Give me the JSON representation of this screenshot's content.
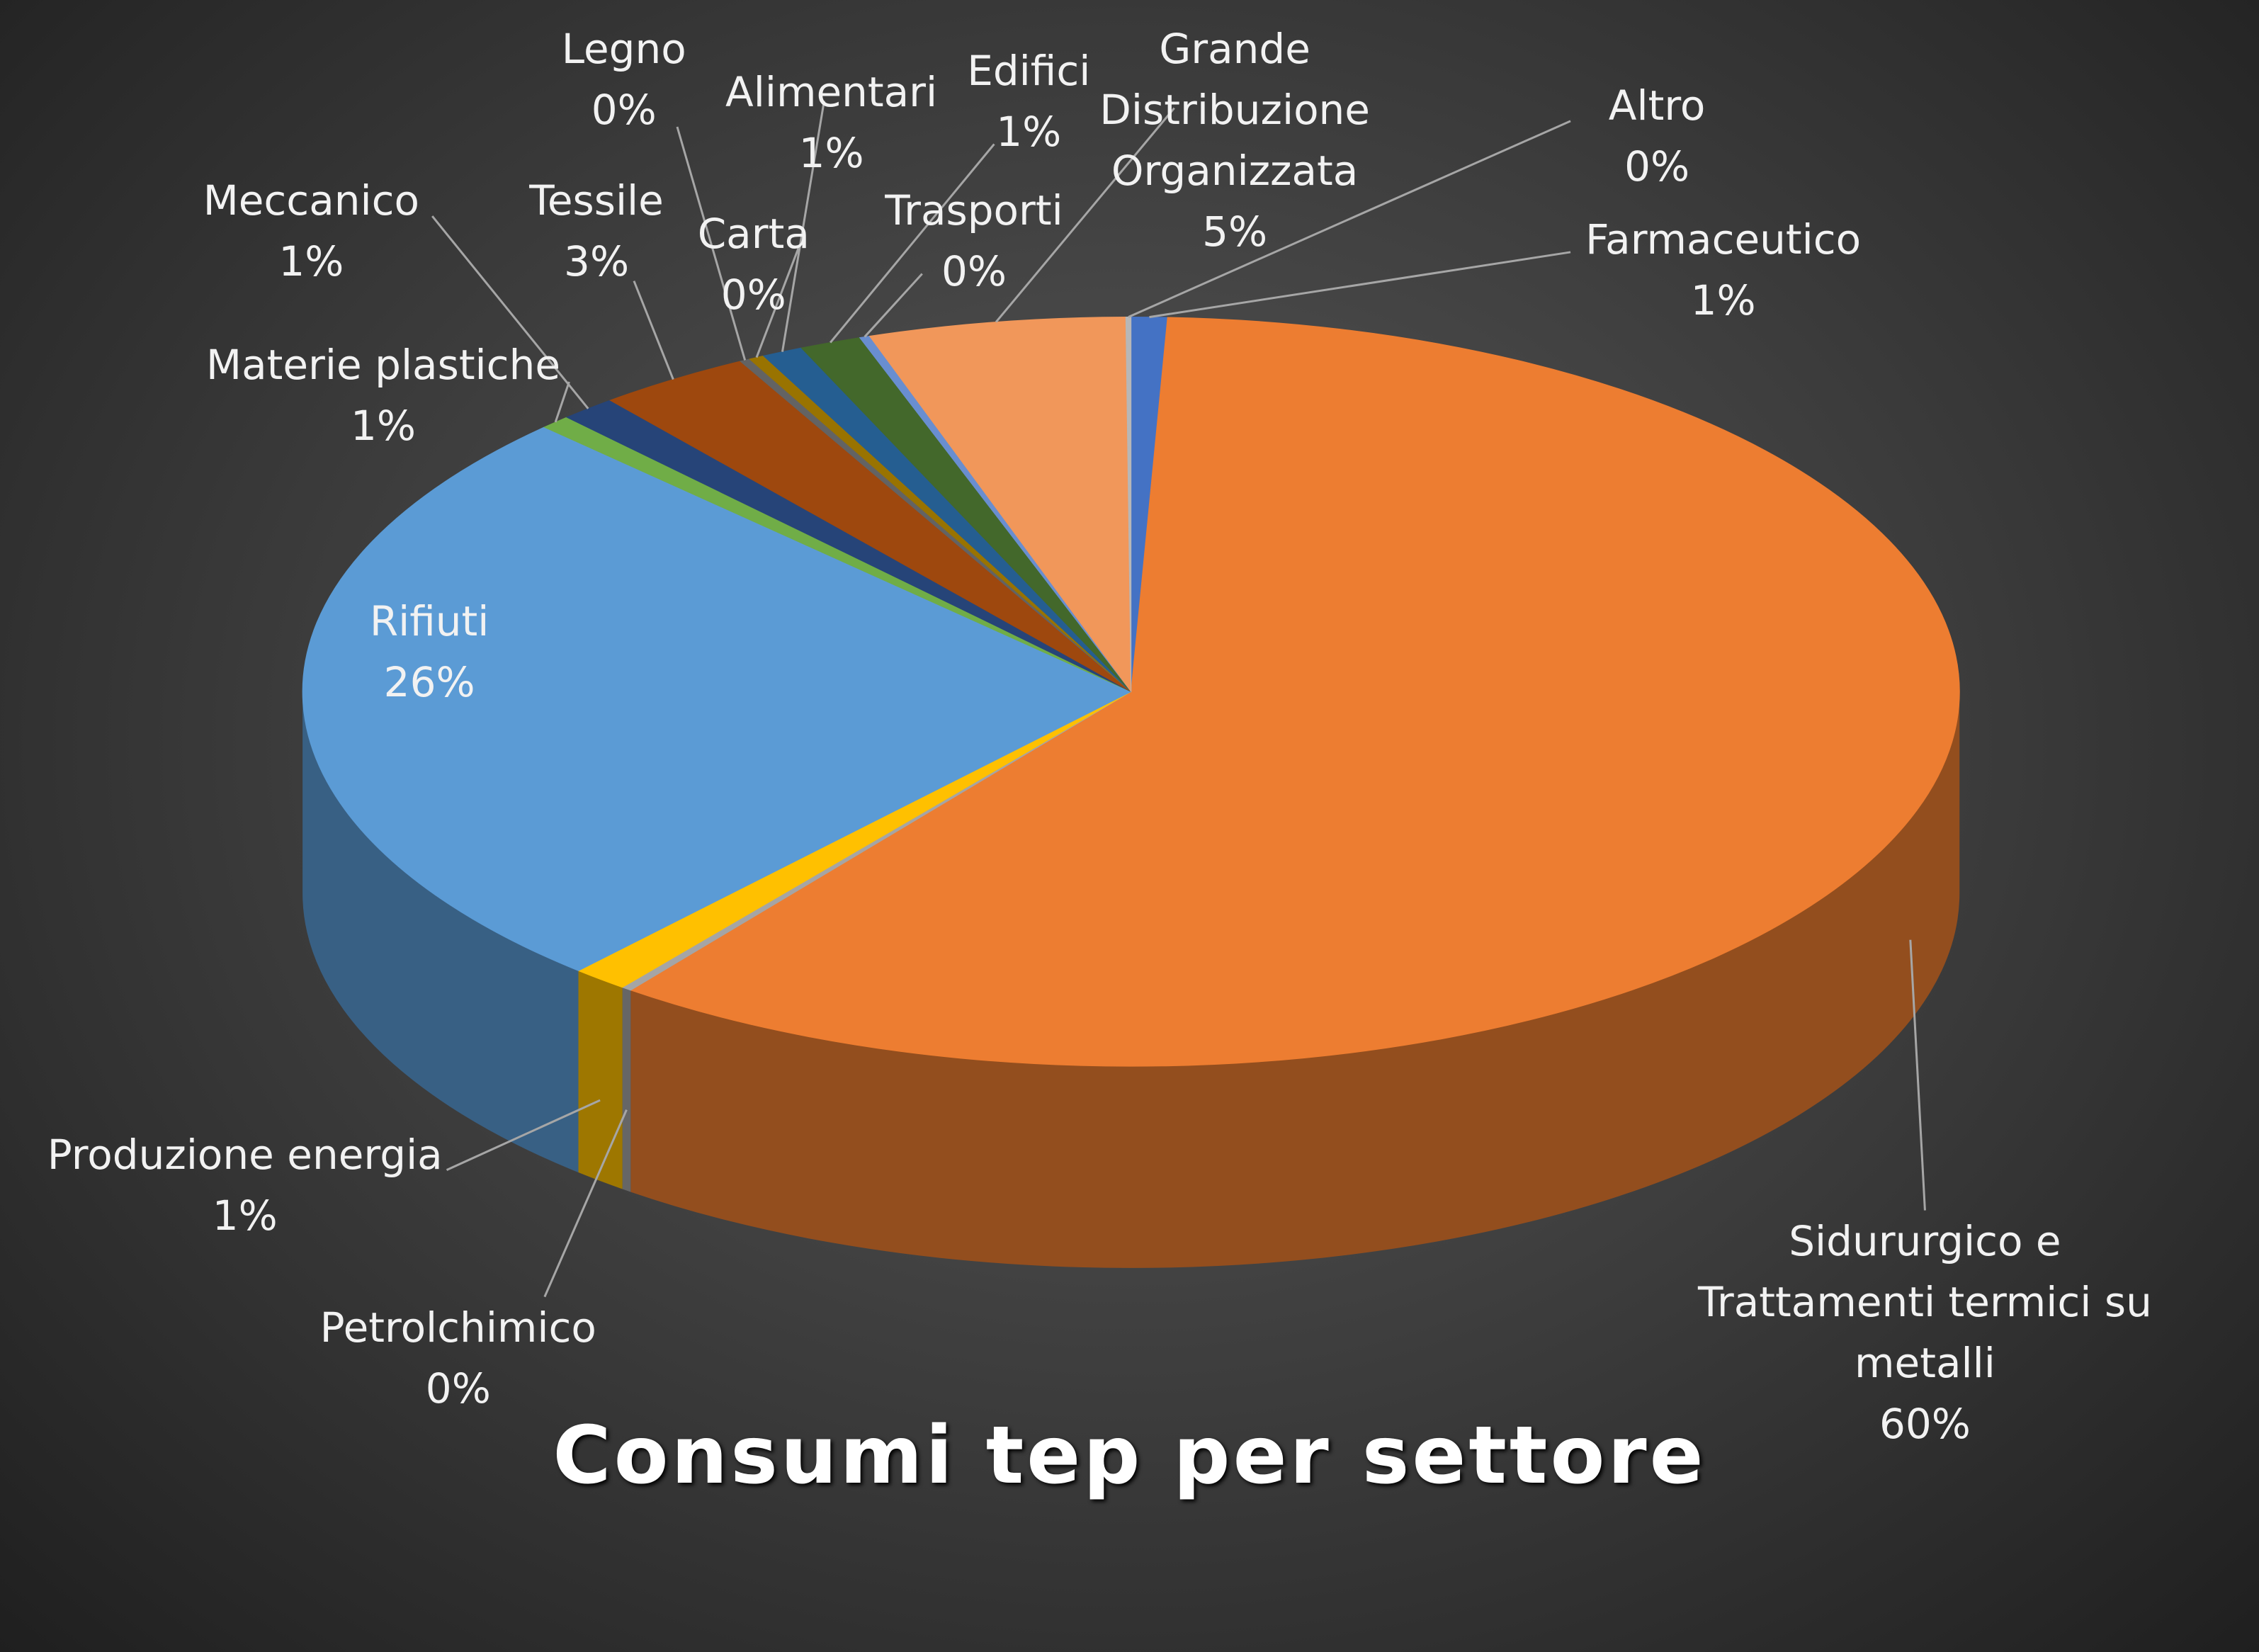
{
  "chart_data": {
    "type": "pie3d",
    "title": "Consumi tep per settore",
    "categories": [
      "Farmaceutico",
      "Sidururgico e Trattamenti termici su metalli",
      "Petrolchimico",
      "Produzione energia",
      "Rifiuti",
      "Materie plastiche",
      "Meccanico",
      "Tessile",
      "Legno",
      "Carta",
      "Alimentari",
      "Edifici",
      "Trasporti",
      "Grande Distribuzione Organizzata",
      "Altro"
    ],
    "values": [
      0.7,
      59.5,
      0.2,
      1.1,
      25.8,
      0.6,
      1.1,
      3,
      0.2,
      0.3,
      0.8,
      1.2,
      0.2,
      5.0,
      0.1
    ],
    "value_labels": [
      "1%",
      "60%",
      "0%",
      "1%",
      "26%",
      "1%",
      "1%",
      "3%",
      "0%",
      "0%",
      "1%",
      "1%",
      "0%",
      "5%",
      "0%"
    ],
    "colors": [
      "#4472c4",
      "#ed7d31",
      "#a5a5a5",
      "#ffc000",
      "#5b9bd5",
      "#70ad47",
      "#264478",
      "#9e480e",
      "#636363",
      "#997300",
      "#255e91",
      "#43682b",
      "#698ed0",
      "#f1975a",
      "#b7b7b7"
    ]
  }
}
